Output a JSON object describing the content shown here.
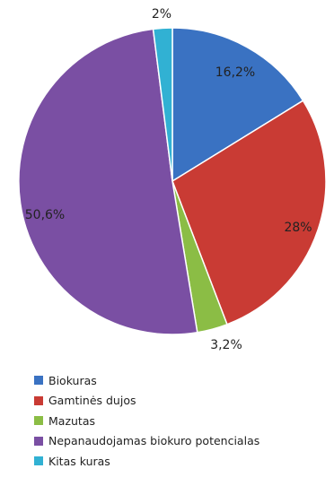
{
  "chart_data": {
    "type": "pie",
    "title": "",
    "legend_position": "bottom-left",
    "slices": [
      {
        "name": "Biokuras",
        "value": 16.2,
        "label": "16,2%",
        "color": "#3a72c2"
      },
      {
        "name": "Gamtinės dujos",
        "value": 28,
        "label": "28%",
        "color": "#c93b34"
      },
      {
        "name": "Mazutas",
        "value": 3.2,
        "label": "3,2%",
        "color": "#8bbd45"
      },
      {
        "name": "Nepanaudojamas biokuro potencialas",
        "value": 50.6,
        "label": "50,6%",
        "color": "#7a4fa3"
      },
      {
        "name": "Kitas kuras",
        "value": 2,
        "label": "2%",
        "color": "#31b1d3"
      }
    ]
  }
}
